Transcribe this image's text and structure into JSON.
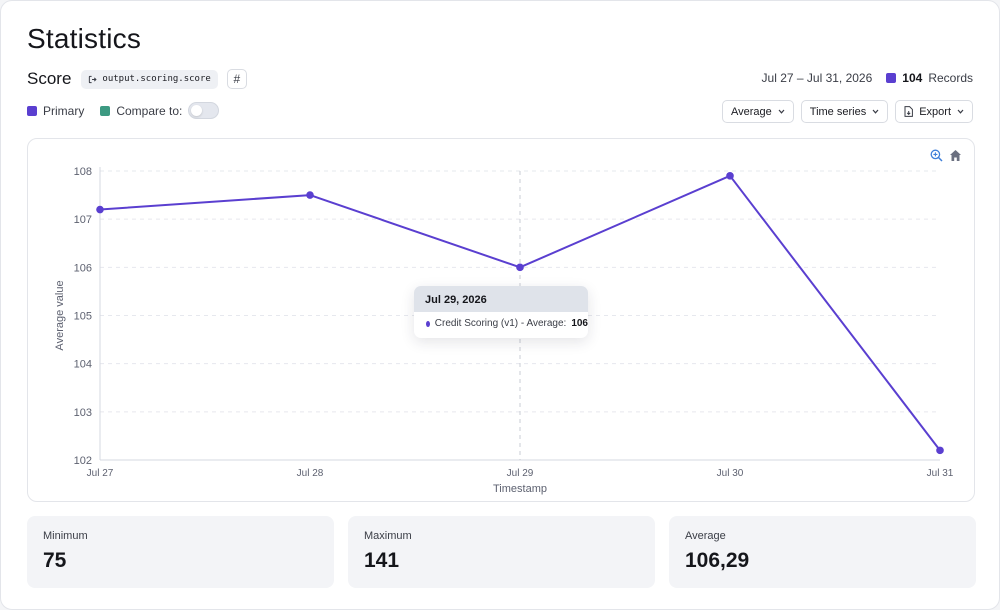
{
  "page": {
    "title": "Statistics"
  },
  "metric": {
    "label": "Score",
    "path": "output.scoring.score",
    "hash": "#"
  },
  "range": {
    "date_range": "Jul 27 – Jul 31, 2026",
    "records_count": "104",
    "records_label": "Records"
  },
  "legend": {
    "primary_label": "Primary",
    "compare_label": "Compare to:",
    "compare_enabled": false,
    "primary_color": "#5a3fd0",
    "compare_color": "#3d9a82"
  },
  "controls": {
    "aggregation": "Average",
    "view": "Time series",
    "export": "Export"
  },
  "chart_data": {
    "type": "line",
    "xlabel": "Timestamp",
    "ylabel": "Average value",
    "categories": [
      "Jul 27",
      "Jul 28",
      "Jul 29",
      "Jul 30",
      "Jul 31"
    ],
    "series": [
      {
        "values": [
          107.2,
          107.5,
          106,
          107.9,
          102.2
        ],
        "color": "#5a3fd0"
      }
    ],
    "yticks": [
      102,
      103,
      104,
      105,
      106,
      107,
      108
    ],
    "ylim": [
      102,
      108
    ],
    "grid": true,
    "highlight_index": 2
  },
  "tooltip": {
    "date": "Jul 29, 2026",
    "series_label": "Credit Scoring (v1) - Average:",
    "value": "106"
  },
  "stats": {
    "minimum_label": "Minimum",
    "minimum_value": "75",
    "maximum_label": "Maximum",
    "maximum_value": "141",
    "average_label": "Average",
    "average_value": "106,29"
  }
}
